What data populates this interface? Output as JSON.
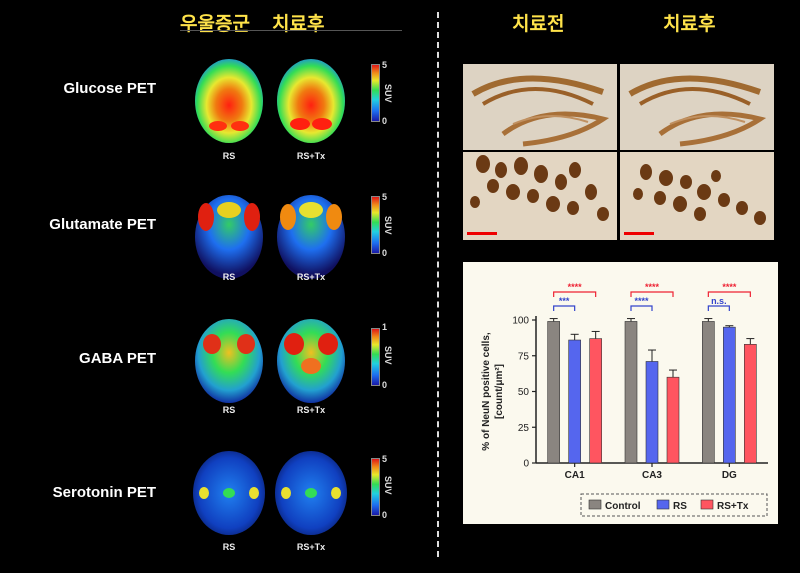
{
  "headers": {
    "depression": "우울증군",
    "after_left": "치료후",
    "before": "치료전",
    "after_right": "치료후"
  },
  "pet_rows": [
    {
      "label": "Glucose PET",
      "scale_max": "5",
      "scale_min": "0",
      "unit": "SUV",
      "left": "RS",
      "right": "RS+Tx"
    },
    {
      "label": "Glutamate PET",
      "scale_max": "5",
      "scale_min": "0",
      "unit": "SUV",
      "left": "RS",
      "right": "RS+Tx"
    },
    {
      "label": "GABA PET",
      "scale_max": "1",
      "scale_min": "0",
      "unit": "SUV",
      "left": "RS",
      "right": "RS+Tx"
    },
    {
      "label": "Serotonin PET",
      "scale_max": "5",
      "scale_min": "0",
      "unit": "SUV",
      "left": "RS",
      "right": "RS+Tx"
    }
  ],
  "chart_data": {
    "type": "bar",
    "categories": [
      "CA1",
      "CA3",
      "DG"
    ],
    "series": [
      {
        "name": "Control",
        "values": [
          99,
          99,
          99
        ],
        "errors": [
          2,
          2,
          2
        ],
        "color": "#8a8580"
      },
      {
        "name": "RS",
        "values": [
          86,
          71,
          95
        ],
        "errors": [
          4,
          8,
          1
        ],
        "color": "#5566ee"
      },
      {
        "name": "RS+Tx",
        "values": [
          87,
          60,
          83
        ],
        "errors": [
          5,
          5,
          4
        ],
        "color": "#ff5560"
      }
    ],
    "ylabel": "% of NeuN positive cells, [count/μm²]",
    "ylim": [
      0,
      100
    ],
    "yticks": [
      "0",
      "25",
      "50",
      "75",
      "100"
    ],
    "significance": [
      {
        "category": "CA1",
        "pair": "Control-RS",
        "label": "***",
        "color": "#3344cc"
      },
      {
        "category": "CA1",
        "pair": "Control-RS+Tx",
        "label": "****",
        "color": "#ee2233"
      },
      {
        "category": "CA3",
        "pair": "Control-RS",
        "label": "****",
        "color": "#3344cc"
      },
      {
        "category": "CA3",
        "pair": "Control-RS+Tx",
        "label": "****",
        "color": "#ee2233"
      },
      {
        "category": "DG",
        "pair": "Control-RS",
        "label": "n.s.",
        "color": "#3344cc"
      },
      {
        "category": "DG",
        "pair": "Control-RS+Tx",
        "label": "****",
        "color": "#ee2233"
      }
    ],
    "legend_position": "bottom"
  }
}
